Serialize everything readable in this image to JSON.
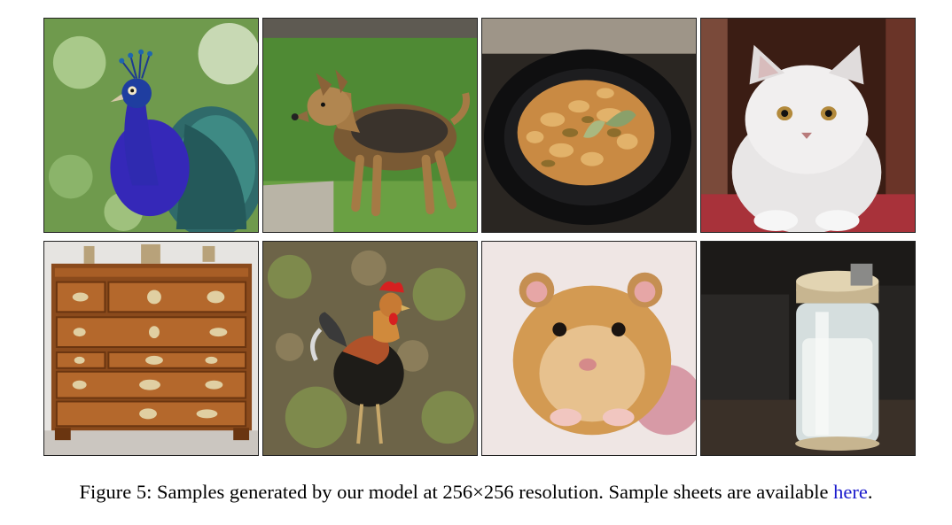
{
  "figure": {
    "caption_prefix": "Figure 5: Samples generated by our model at 256×256 resolution. Sample sheets are available ",
    "caption_link": "here",
    "caption_suffix": ".",
    "link_color": "#1a1acc"
  }
}
